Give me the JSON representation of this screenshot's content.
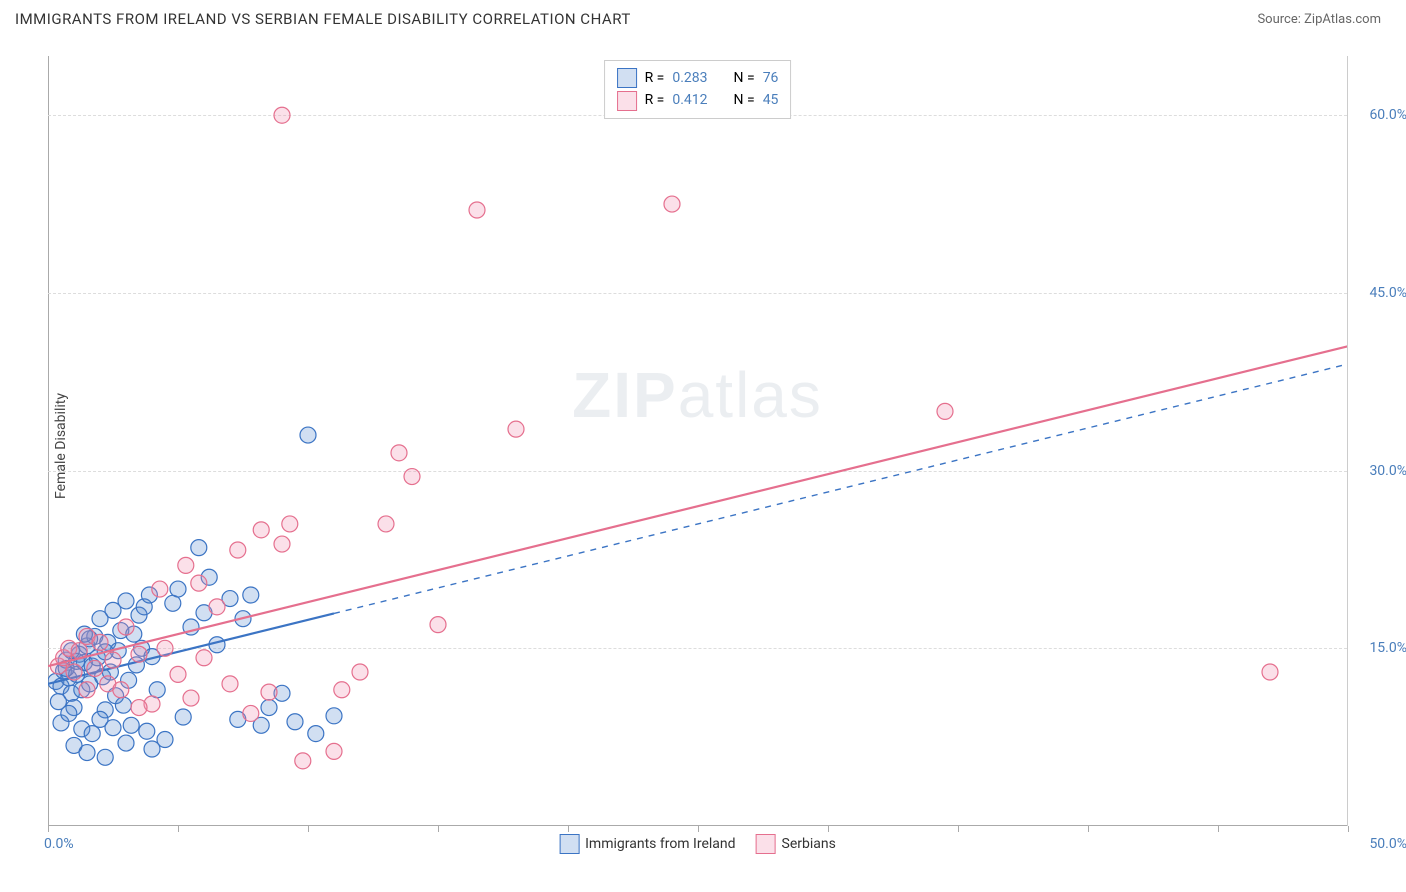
{
  "header": {
    "title": "IMMIGRANTS FROM IRELAND VS SERBIAN FEMALE DISABILITY CORRELATION CHART",
    "source_label": "Source:",
    "source_name": "ZipAtlas.com"
  },
  "chart": {
    "type": "scatter",
    "ylabel": "Female Disability",
    "xlim": [
      0,
      50
    ],
    "ylim": [
      0,
      65
    ],
    "xtick_positions": [
      0,
      5,
      10,
      15,
      20,
      25,
      30,
      35,
      40,
      45,
      50
    ],
    "xmin_label": "0.0%",
    "xmax_label": "50.0%",
    "ygrid": [
      {
        "value": 15,
        "label": "15.0%"
      },
      {
        "value": 30,
        "label": "30.0%"
      },
      {
        "value": 45,
        "label": "45.0%"
      },
      {
        "value": 60,
        "label": "60.0%"
      }
    ],
    "watermark": {
      "bold": "ZIP",
      "rest": "atlas"
    },
    "background_color": "#ffffff",
    "grid_color": "#dddddd",
    "axis_color": "#aaaaaa",
    "tick_label_color": "#4a7ebb",
    "marker_radius": 8,
    "marker_fill_opacity": 0.28,
    "marker_stroke_width": 1.2,
    "trend_line_width": 2.2
  },
  "series": [
    {
      "key": "ireland",
      "label": "Immigrants from Ireland",
      "color": "#3b74c4",
      "fill": "rgba(90,140,210,0.28)",
      "R": "0.283",
      "N": "76",
      "trend": {
        "x1": 0,
        "y1": 12.0,
        "x2": 50,
        "y2": 39.0,
        "solid_until_x": 11
      },
      "points": [
        [
          0.3,
          12.2
        ],
        [
          0.4,
          10.5
        ],
        [
          0.5,
          11.8
        ],
        [
          0.6,
          13.1
        ],
        [
          0.7,
          14.0
        ],
        [
          0.8,
          12.5
        ],
        [
          0.9,
          11.2
        ],
        [
          1.0,
          10.0
        ],
        [
          1.1,
          12.8
        ],
        [
          1.2,
          14.5
        ],
        [
          1.3,
          11.5
        ],
        [
          1.4,
          13.8
        ],
        [
          1.5,
          15.2
        ],
        [
          1.6,
          12.0
        ],
        [
          1.7,
          13.5
        ],
        [
          1.8,
          16.0
        ],
        [
          1.9,
          14.2
        ],
        [
          2.0,
          17.5
        ],
        [
          2.1,
          12.6
        ],
        [
          2.2,
          9.8
        ],
        [
          2.3,
          15.5
        ],
        [
          2.4,
          13.0
        ],
        [
          2.5,
          18.2
        ],
        [
          2.6,
          11.0
        ],
        [
          2.7,
          14.8
        ],
        [
          2.8,
          16.5
        ],
        [
          2.9,
          10.2
        ],
        [
          3.0,
          19.0
        ],
        [
          3.1,
          12.3
        ],
        [
          3.2,
          8.5
        ],
        [
          3.3,
          16.2
        ],
        [
          3.4,
          13.6
        ],
        [
          3.5,
          17.8
        ],
        [
          3.6,
          15.0
        ],
        [
          3.7,
          18.5
        ],
        [
          3.8,
          8.0
        ],
        [
          3.9,
          19.5
        ],
        [
          4.0,
          14.3
        ],
        [
          4.2,
          11.5
        ],
        [
          4.5,
          7.3
        ],
        [
          4.8,
          18.8
        ],
        [
          5.0,
          20.0
        ],
        [
          5.2,
          9.2
        ],
        [
          5.5,
          16.8
        ],
        [
          5.8,
          23.5
        ],
        [
          6.0,
          18.0
        ],
        [
          6.2,
          21.0
        ],
        [
          6.5,
          15.3
        ],
        [
          7.0,
          19.2
        ],
        [
          7.3,
          9.0
        ],
        [
          7.5,
          17.5
        ],
        [
          7.8,
          19.5
        ],
        [
          8.2,
          8.5
        ],
        [
          8.5,
          10.0
        ],
        [
          9.0,
          11.2
        ],
        [
          9.5,
          8.8
        ],
        [
          10.0,
          33.0
        ],
        [
          10.3,
          7.8
        ],
        [
          11.0,
          9.3
        ],
        [
          0.5,
          8.7
        ],
        [
          0.8,
          9.5
        ],
        [
          1.3,
          8.2
        ],
        [
          1.7,
          7.8
        ],
        [
          2.0,
          9.0
        ],
        [
          2.5,
          8.3
        ],
        [
          3.0,
          7.0
        ],
        [
          4.0,
          6.5
        ],
        [
          1.0,
          6.8
        ],
        [
          1.5,
          6.2
        ],
        [
          2.2,
          5.8
        ],
        [
          0.7,
          13.3
        ],
        [
          1.1,
          13.9
        ],
        [
          1.6,
          15.8
        ],
        [
          2.2,
          14.7
        ],
        [
          0.9,
          14.8
        ],
        [
          1.4,
          16.2
        ]
      ]
    },
    {
      "key": "serbians",
      "label": "Serbians",
      "color": "#e56f8e",
      "fill": "rgba(240,145,175,0.28)",
      "R": "0.412",
      "N": "45",
      "trend": {
        "x1": 0,
        "y1": 13.5,
        "x2": 50,
        "y2": 40.5,
        "solid_until_x": 50
      },
      "points": [
        [
          0.4,
          13.5
        ],
        [
          0.6,
          14.2
        ],
        [
          0.8,
          15.0
        ],
        [
          1.0,
          13.0
        ],
        [
          1.2,
          14.8
        ],
        [
          1.5,
          16.0
        ],
        [
          1.8,
          13.3
        ],
        [
          2.0,
          15.5
        ],
        [
          2.3,
          12.0
        ],
        [
          2.5,
          14.0
        ],
        [
          2.8,
          11.5
        ],
        [
          3.0,
          16.8
        ],
        [
          3.5,
          14.5
        ],
        [
          4.0,
          10.3
        ],
        [
          4.3,
          20.0
        ],
        [
          4.5,
          15.0
        ],
        [
          5.0,
          12.8
        ],
        [
          5.3,
          22.0
        ],
        [
          5.5,
          10.8
        ],
        [
          5.8,
          20.5
        ],
        [
          6.0,
          14.2
        ],
        [
          6.5,
          18.5
        ],
        [
          7.0,
          12.0
        ],
        [
          7.3,
          23.3
        ],
        [
          7.8,
          9.5
        ],
        [
          8.2,
          25.0
        ],
        [
          8.5,
          11.3
        ],
        [
          9.0,
          23.8
        ],
        [
          9.3,
          25.5
        ],
        [
          9.8,
          5.5
        ],
        [
          11.0,
          6.3
        ],
        [
          11.3,
          11.5
        ],
        [
          12.0,
          13.0
        ],
        [
          13.0,
          25.5
        ],
        [
          13.5,
          31.5
        ],
        [
          14.0,
          29.5
        ],
        [
          15.0,
          17.0
        ],
        [
          16.5,
          52.0
        ],
        [
          18.0,
          33.5
        ],
        [
          24.0,
          52.5
        ],
        [
          9.0,
          60.0
        ],
        [
          34.5,
          35.0
        ],
        [
          47.0,
          13.0
        ],
        [
          3.5,
          10.0
        ],
        [
          1.5,
          11.5
        ]
      ]
    }
  ],
  "legend_top": {
    "R_label": "R =",
    "N_label": "N ="
  }
}
